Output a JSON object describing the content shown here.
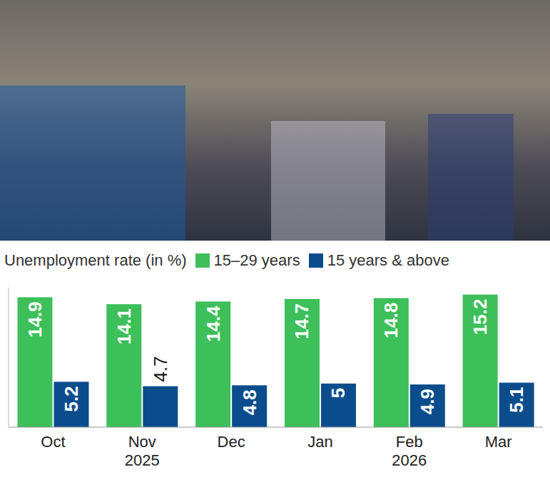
{
  "chart_data": {
    "type": "bar",
    "title": "Unemployment rate (in %)",
    "categories": [
      "Oct",
      "Nov",
      "Dec",
      "Jan",
      "Feb",
      "Mar"
    ],
    "x_groups": [
      {
        "label": "2025",
        "categories": [
          "Oct",
          "Nov",
          "Dec"
        ]
      },
      {
        "label": "2026",
        "categories": [
          "Jan",
          "Feb",
          "Mar"
        ]
      }
    ],
    "series": [
      {
        "name": "15–29 years",
        "color": "#3dbf5a",
        "values": [
          14.9,
          14.1,
          14.4,
          14.7,
          14.8,
          15.2
        ]
      },
      {
        "name": "15 years & above",
        "color": "#0b4d8c",
        "values": [
          5.2,
          4.7,
          4.8,
          5,
          4.9,
          5.1
        ]
      }
    ],
    "ylim": [
      0,
      16
    ],
    "yticks": [],
    "data_labels": true,
    "tick_labels": "x",
    "legend": "top",
    "grid": false
  }
}
